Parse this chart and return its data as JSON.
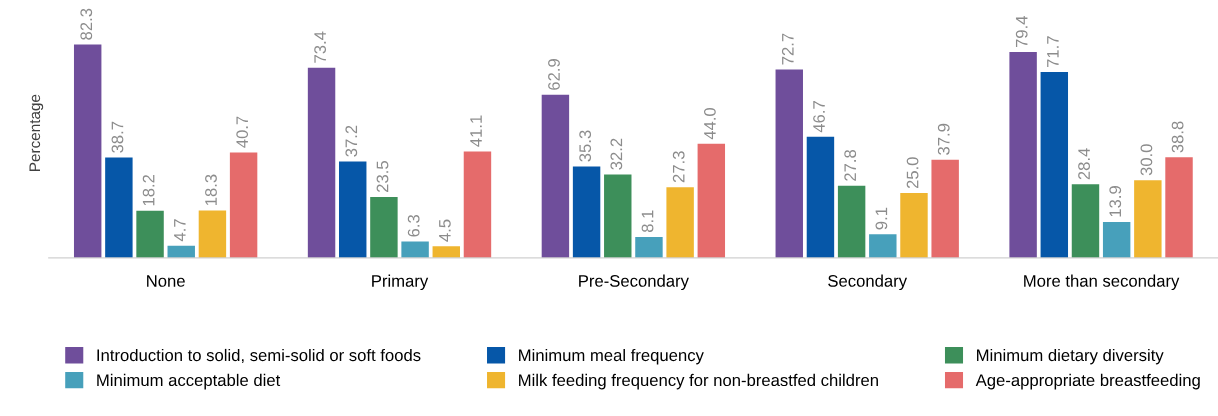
{
  "chart_data": {
    "type": "bar",
    "ylabel": "Percentage",
    "categories": [
      "None",
      "Primary",
      "Pre-Secondary",
      "Secondary",
      "More than secondary"
    ],
    "series": [
      {
        "name": "Introduction to solid, semi-solid or soft foods",
        "color": "#6f4e9b",
        "values": [
          82.3,
          73.4,
          62.9,
          72.7,
          79.4
        ],
        "value_labels": [
          "82.3",
          "73.4",
          "62.9",
          "72.7",
          "79.4"
        ]
      },
      {
        "name": "Minimum meal frequency",
        "color": "#0657a8",
        "values": [
          38.7,
          37.2,
          35.3,
          46.7,
          71.7
        ],
        "value_labels": [
          "38.7",
          "37.2",
          "35.3",
          "46.7",
          "71.7"
        ]
      },
      {
        "name": "Minimum dietary diversity",
        "color": "#3d8f5a",
        "values": [
          18.2,
          23.5,
          32.2,
          27.8,
          28.4
        ],
        "value_labels": [
          "18.2",
          "23.5",
          "32.2",
          "27.8",
          "28.4"
        ]
      },
      {
        "name": "Minimum acceptable diet",
        "color": "#47a0bb",
        "values": [
          4.7,
          6.3,
          8.1,
          9.1,
          13.9
        ],
        "value_labels": [
          "4.7",
          "6.3",
          "8.1",
          "9.1",
          "13.9"
        ]
      },
      {
        "name": "Milk feeding frequency for non-breastfed children",
        "color": "#efb52f",
        "values": [
          18.3,
          4.5,
          27.3,
          25.0,
          30.0
        ],
        "value_labels": [
          "18.3",
          "4.5",
          "27.3",
          "25.0",
          "30.0"
        ]
      },
      {
        "name": "Age-appropriate breastfeeding",
        "color": "#e56b6b",
        "values": [
          40.7,
          41.1,
          44.0,
          37.9,
          38.8
        ],
        "value_labels": [
          "40.7",
          "41.1",
          "44.0",
          "37.9",
          "38.8"
        ]
      }
    ],
    "legend": "bottom",
    "grid": false
  }
}
